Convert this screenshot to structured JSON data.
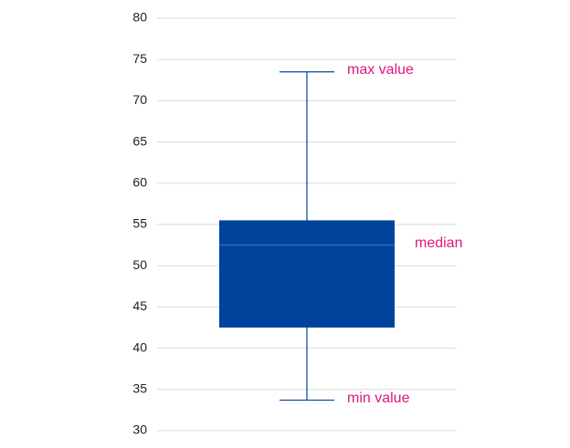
{
  "chart_data": {
    "type": "box",
    "box": {
      "min": 33.7,
      "q1": 42.5,
      "median": 52.5,
      "q3": 55.5,
      "max": 73.5
    },
    "color": "#00439c",
    "annotations": {
      "max": "max value",
      "median": "median",
      "min": "min value"
    },
    "annotation_color": "#e0157f",
    "ylim": [
      30,
      80
    ],
    "yticks": [
      30,
      35,
      40,
      45,
      50,
      55,
      60,
      65,
      70,
      75,
      80
    ],
    "grid": true
  }
}
